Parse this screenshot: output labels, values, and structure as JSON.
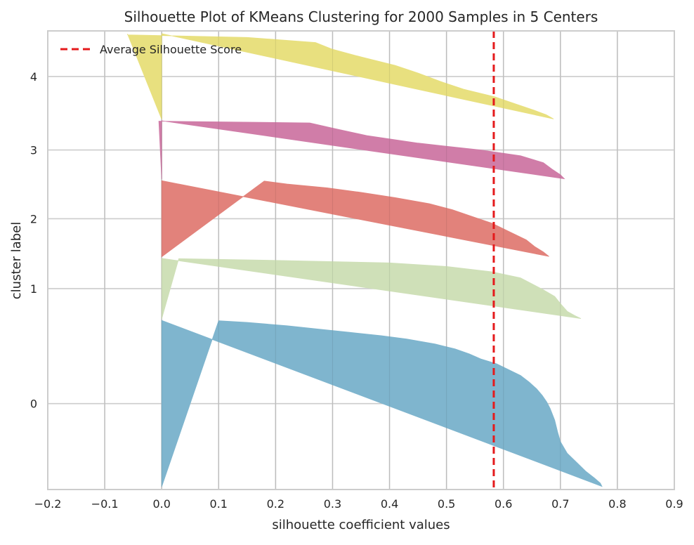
{
  "chart_data": {
    "type": "silhouette",
    "title": "Silhouette Plot of KMeans Clustering for 2000 Samples in 5 Centers",
    "xlabel": "silhouette coefficient values",
    "ylabel": "cluster label",
    "xlim": [
      -0.2,
      0.9
    ],
    "xticks": [
      -0.2,
      -0.1,
      0.0,
      0.1,
      0.2,
      0.3,
      0.4,
      0.5,
      0.6,
      0.7,
      0.8,
      0.9
    ],
    "xtick_labels": [
      "−0.2",
      "−0.1",
      "0.0",
      "0.1",
      "0.2",
      "0.3",
      "0.4",
      "0.5",
      "0.6",
      "0.7",
      "0.8",
      "0.9"
    ],
    "grid": true,
    "legend_position": "top-left",
    "legend_label": "Average Silhouette Score",
    "average_silhouette_score": 0.583,
    "average_line_color": "#e41a1c",
    "series": [
      {
        "cluster": 0,
        "label": "0",
        "count": 747,
        "color": "#7fb5ce",
        "profile": [
          [
            0.0,
            0.773
          ],
          [
            0.02,
            0.77
          ],
          [
            0.05,
            0.76
          ],
          [
            0.09,
            0.745
          ],
          [
            0.14,
            0.73
          ],
          [
            0.2,
            0.712
          ],
          [
            0.27,
            0.7
          ],
          [
            0.33,
            0.695
          ],
          [
            0.4,
            0.69
          ],
          [
            0.47,
            0.682
          ],
          [
            0.51,
            0.676
          ],
          [
            0.55,
            0.668
          ],
          [
            0.59,
            0.658
          ],
          [
            0.63,
            0.645
          ],
          [
            0.67,
            0.63
          ],
          [
            0.7,
            0.612
          ],
          [
            0.74,
            0.588
          ],
          [
            0.77,
            0.56
          ],
          [
            0.8,
            0.54
          ],
          [
            0.83,
            0.515
          ],
          [
            0.86,
            0.48
          ],
          [
            0.89,
            0.43
          ],
          [
            0.91,
            0.385
          ],
          [
            0.93,
            0.33
          ],
          [
            0.95,
            0.275
          ],
          [
            0.97,
            0.22
          ],
          [
            0.99,
            0.15
          ],
          [
            1.0,
            0.1
          ]
        ]
      },
      {
        "cluster": 1,
        "label": "1",
        "count": 270,
        "color": "#cfe0b8",
        "profile": [
          [
            0.0,
            0.736
          ],
          [
            0.05,
            0.725
          ],
          [
            0.12,
            0.712
          ],
          [
            0.25,
            0.7
          ],
          [
            0.37,
            0.69
          ],
          [
            0.48,
            0.67
          ],
          [
            0.58,
            0.65
          ],
          [
            0.68,
            0.63
          ],
          [
            0.78,
            0.58
          ],
          [
            0.87,
            0.5
          ],
          [
            0.93,
            0.4
          ],
          [
            0.97,
            0.21
          ],
          [
            1.0,
            0.03
          ]
        ]
      },
      {
        "cluster": 2,
        "label": "2",
        "count": 340,
        "color": "#e2827b",
        "profile": [
          [
            0.0,
            0.68
          ],
          [
            0.06,
            0.67
          ],
          [
            0.13,
            0.655
          ],
          [
            0.22,
            0.64
          ],
          [
            0.33,
            0.61
          ],
          [
            0.44,
            0.58
          ],
          [
            0.53,
            0.545
          ],
          [
            0.62,
            0.51
          ],
          [
            0.7,
            0.47
          ],
          [
            0.78,
            0.41
          ],
          [
            0.85,
            0.35
          ],
          [
            0.91,
            0.29
          ],
          [
            0.96,
            0.22
          ],
          [
            1.0,
            0.18
          ]
        ]
      },
      {
        "cluster": 3,
        "label": "3",
        "count": 260,
        "color": "#d07da8",
        "profile": [
          [
            0.0,
            0.707
          ],
          [
            0.07,
            0.7
          ],
          [
            0.17,
            0.685
          ],
          [
            0.28,
            0.67
          ],
          [
            0.4,
            0.63
          ],
          [
            0.5,
            0.56
          ],
          [
            0.62,
            0.45
          ],
          [
            0.75,
            0.36
          ],
          [
            0.88,
            0.3
          ],
          [
            0.97,
            0.26
          ],
          [
            1.0,
            -0.005
          ]
        ]
      },
      {
        "cluster": 4,
        "label": "4",
        "count": 383,
        "color": "#e8e07f",
        "profile": [
          [
            0.0,
            0.688
          ],
          [
            0.05,
            0.675
          ],
          [
            0.1,
            0.655
          ],
          [
            0.18,
            0.62
          ],
          [
            0.26,
            0.585
          ],
          [
            0.35,
            0.53
          ],
          [
            0.44,
            0.49
          ],
          [
            0.54,
            0.45
          ],
          [
            0.63,
            0.41
          ],
          [
            0.73,
            0.35
          ],
          [
            0.82,
            0.3
          ],
          [
            0.9,
            0.27
          ],
          [
            0.96,
            0.15
          ],
          [
            0.99,
            -0.06
          ],
          [
            1.0,
            -0.06
          ]
        ]
      }
    ]
  }
}
